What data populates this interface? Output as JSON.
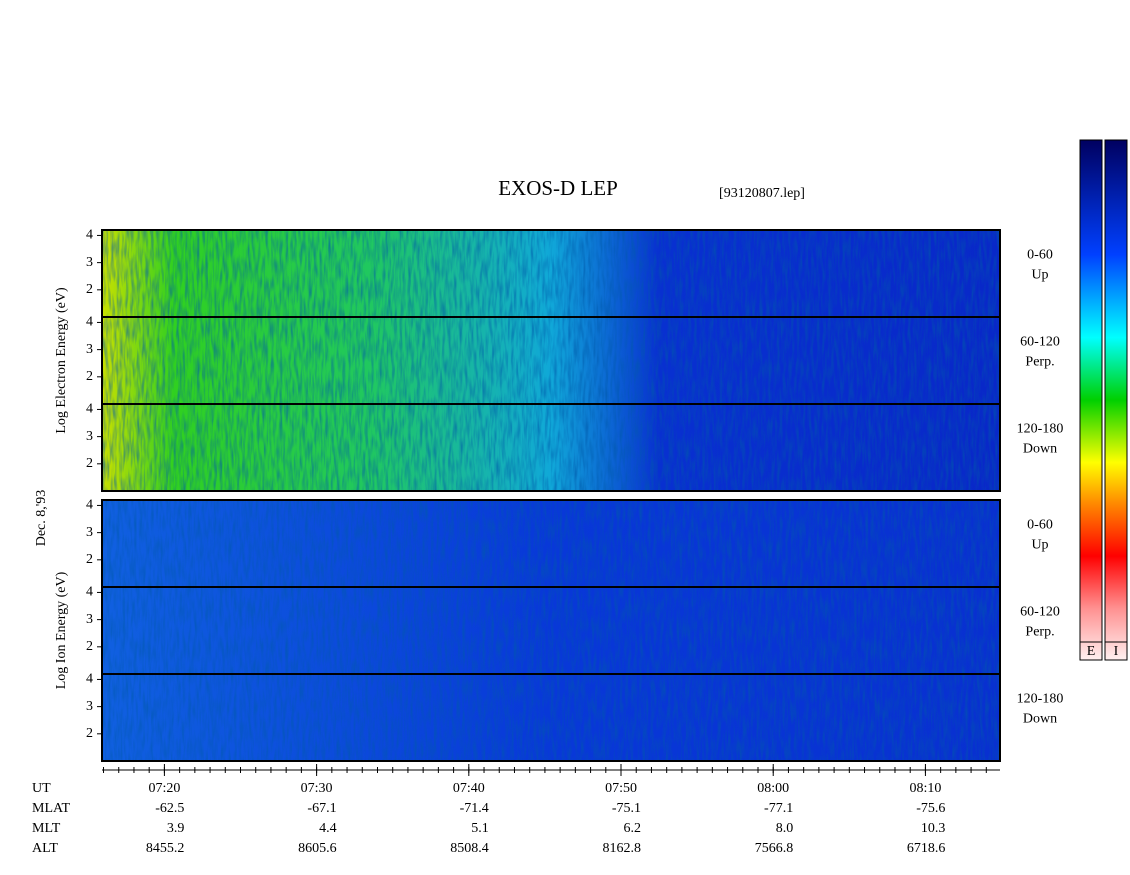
{
  "chart_data": {
    "type": "spectrogram",
    "title": "EXOS-D LEP",
    "file_label": "[93120807.lep]",
    "date_label": "Dec. 8,'93",
    "groups": [
      {
        "y_label": "Log Electron Energy (eV)",
        "panels": [
          {
            "angle": "0-60",
            "direction": "Up"
          },
          {
            "angle": "60-120",
            "direction": "Perp."
          },
          {
            "angle": "120-180",
            "direction": "Down"
          }
        ]
      },
      {
        "y_label": "Log Ion Energy (eV)",
        "panels": [
          {
            "angle": "0-60",
            "direction": "Up"
          },
          {
            "angle": "60-120",
            "direction": "Perp."
          },
          {
            "angle": "120-180",
            "direction": "Down"
          }
        ]
      }
    ],
    "ylim": [
      1,
      4.2
    ],
    "yticks": [
      2,
      3,
      4
    ],
    "xlim": [
      435.9,
      494.9
    ],
    "xticks": [
      {
        "value": 440,
        "label": "07:20"
      },
      {
        "value": 450,
        "label": "07:30"
      },
      {
        "value": 460,
        "label": "07:40"
      },
      {
        "value": 470,
        "label": "07:50"
      },
      {
        "value": 480,
        "label": "08:00"
      },
      {
        "value": 490,
        "label": "08:10"
      }
    ],
    "x_label": "UT",
    "colorbar_labels": [
      "E",
      "I"
    ]
  },
  "orbit_table": {
    "rows": [
      {
        "label": "MLAT",
        "values": [
          "-62.5",
          "-67.1",
          "-71.4",
          "-75.1",
          "-77.1",
          "-75.6"
        ]
      },
      {
        "label": "MLT",
        "values": [
          "3.9",
          "4.4",
          "5.1",
          "6.2",
          "8.0",
          "10.3"
        ]
      },
      {
        "label": "ALT",
        "values": [
          "8455.2",
          "8605.6",
          "8508.4",
          "8162.8",
          "7566.8",
          "6718.6"
        ]
      }
    ]
  }
}
